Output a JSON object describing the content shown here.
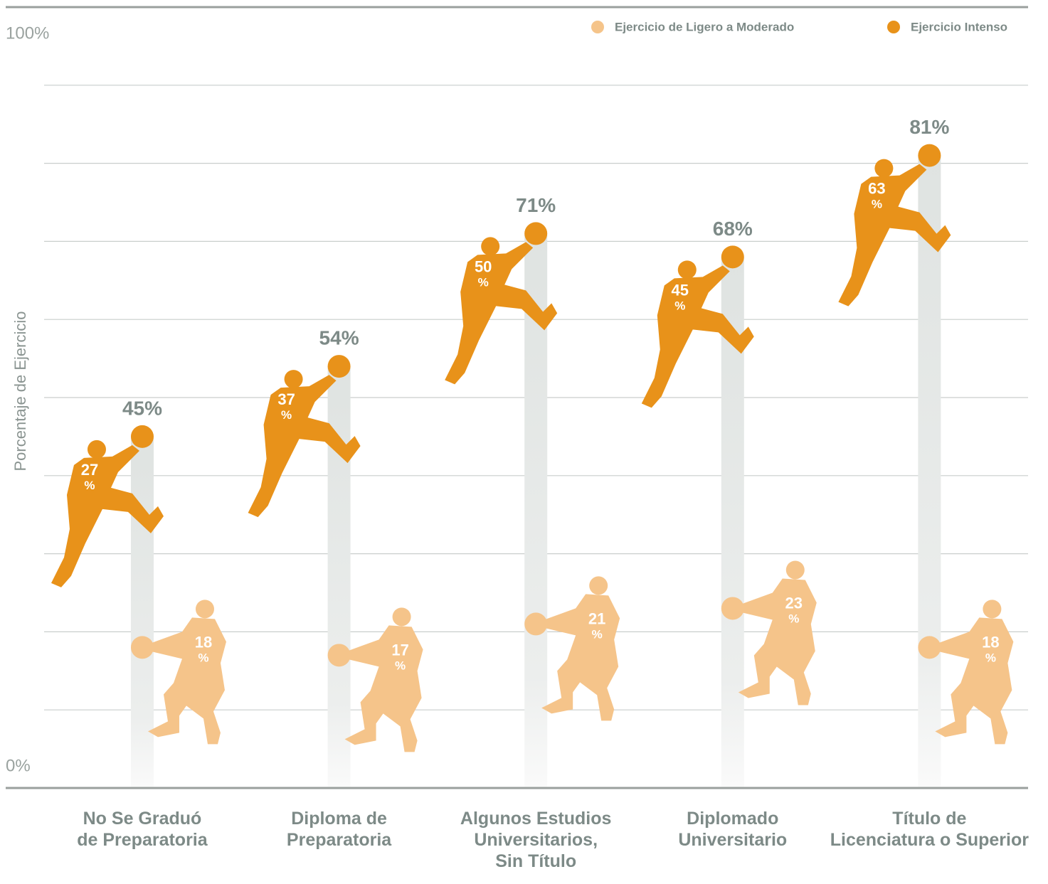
{
  "chart_data": {
    "type": "stacked-figure",
    "y_axis_label": "Porcentaje de Ejercicio",
    "categories": [
      "No Se Graduó\nde Preparatoria",
      "Diploma de\nPreparatoria",
      "Algunos Estudios\nUniversitarios,\nSin Título",
      "Diplomado\nUniversitario",
      "Título de\nLicenciatura o Superior"
    ],
    "series": [
      {
        "name": "Ejercicio de Ligero a Moderado",
        "color": "#f5c48a",
        "values": [
          18,
          17,
          21,
          23,
          18
        ],
        "value_labels": [
          "18%",
          "17%",
          "21%",
          "23%",
          "18%"
        ]
      },
      {
        "name": "Ejercicio Intenso",
        "color": "#e8921a",
        "values": [
          27,
          37,
          50,
          45,
          63
        ],
        "value_labels": [
          "27%",
          "37%",
          "50%",
          "45%",
          "63%"
        ]
      }
    ],
    "totals": {
      "values": [
        45,
        54,
        71,
        68,
        81
      ],
      "value_labels": [
        "45%",
        "54%",
        "71%",
        "68%",
        "81%"
      ]
    },
    "ylim": [
      0,
      100
    ],
    "yticks": [
      {
        "value": 0,
        "label": "0%"
      },
      {
        "value": 10,
        "label": null
      },
      {
        "value": 20,
        "label": null
      },
      {
        "value": 30,
        "label": null
      },
      {
        "value": 40,
        "label": null
      },
      {
        "value": 50,
        "label": null
      },
      {
        "value": 60,
        "label": null
      },
      {
        "value": 70,
        "label": null
      },
      {
        "value": 80,
        "label": null
      },
      {
        "value": 90,
        "label": null
      },
      {
        "value": 100,
        "label": "100%"
      }
    ],
    "grid": true,
    "legend": "top-right"
  }
}
